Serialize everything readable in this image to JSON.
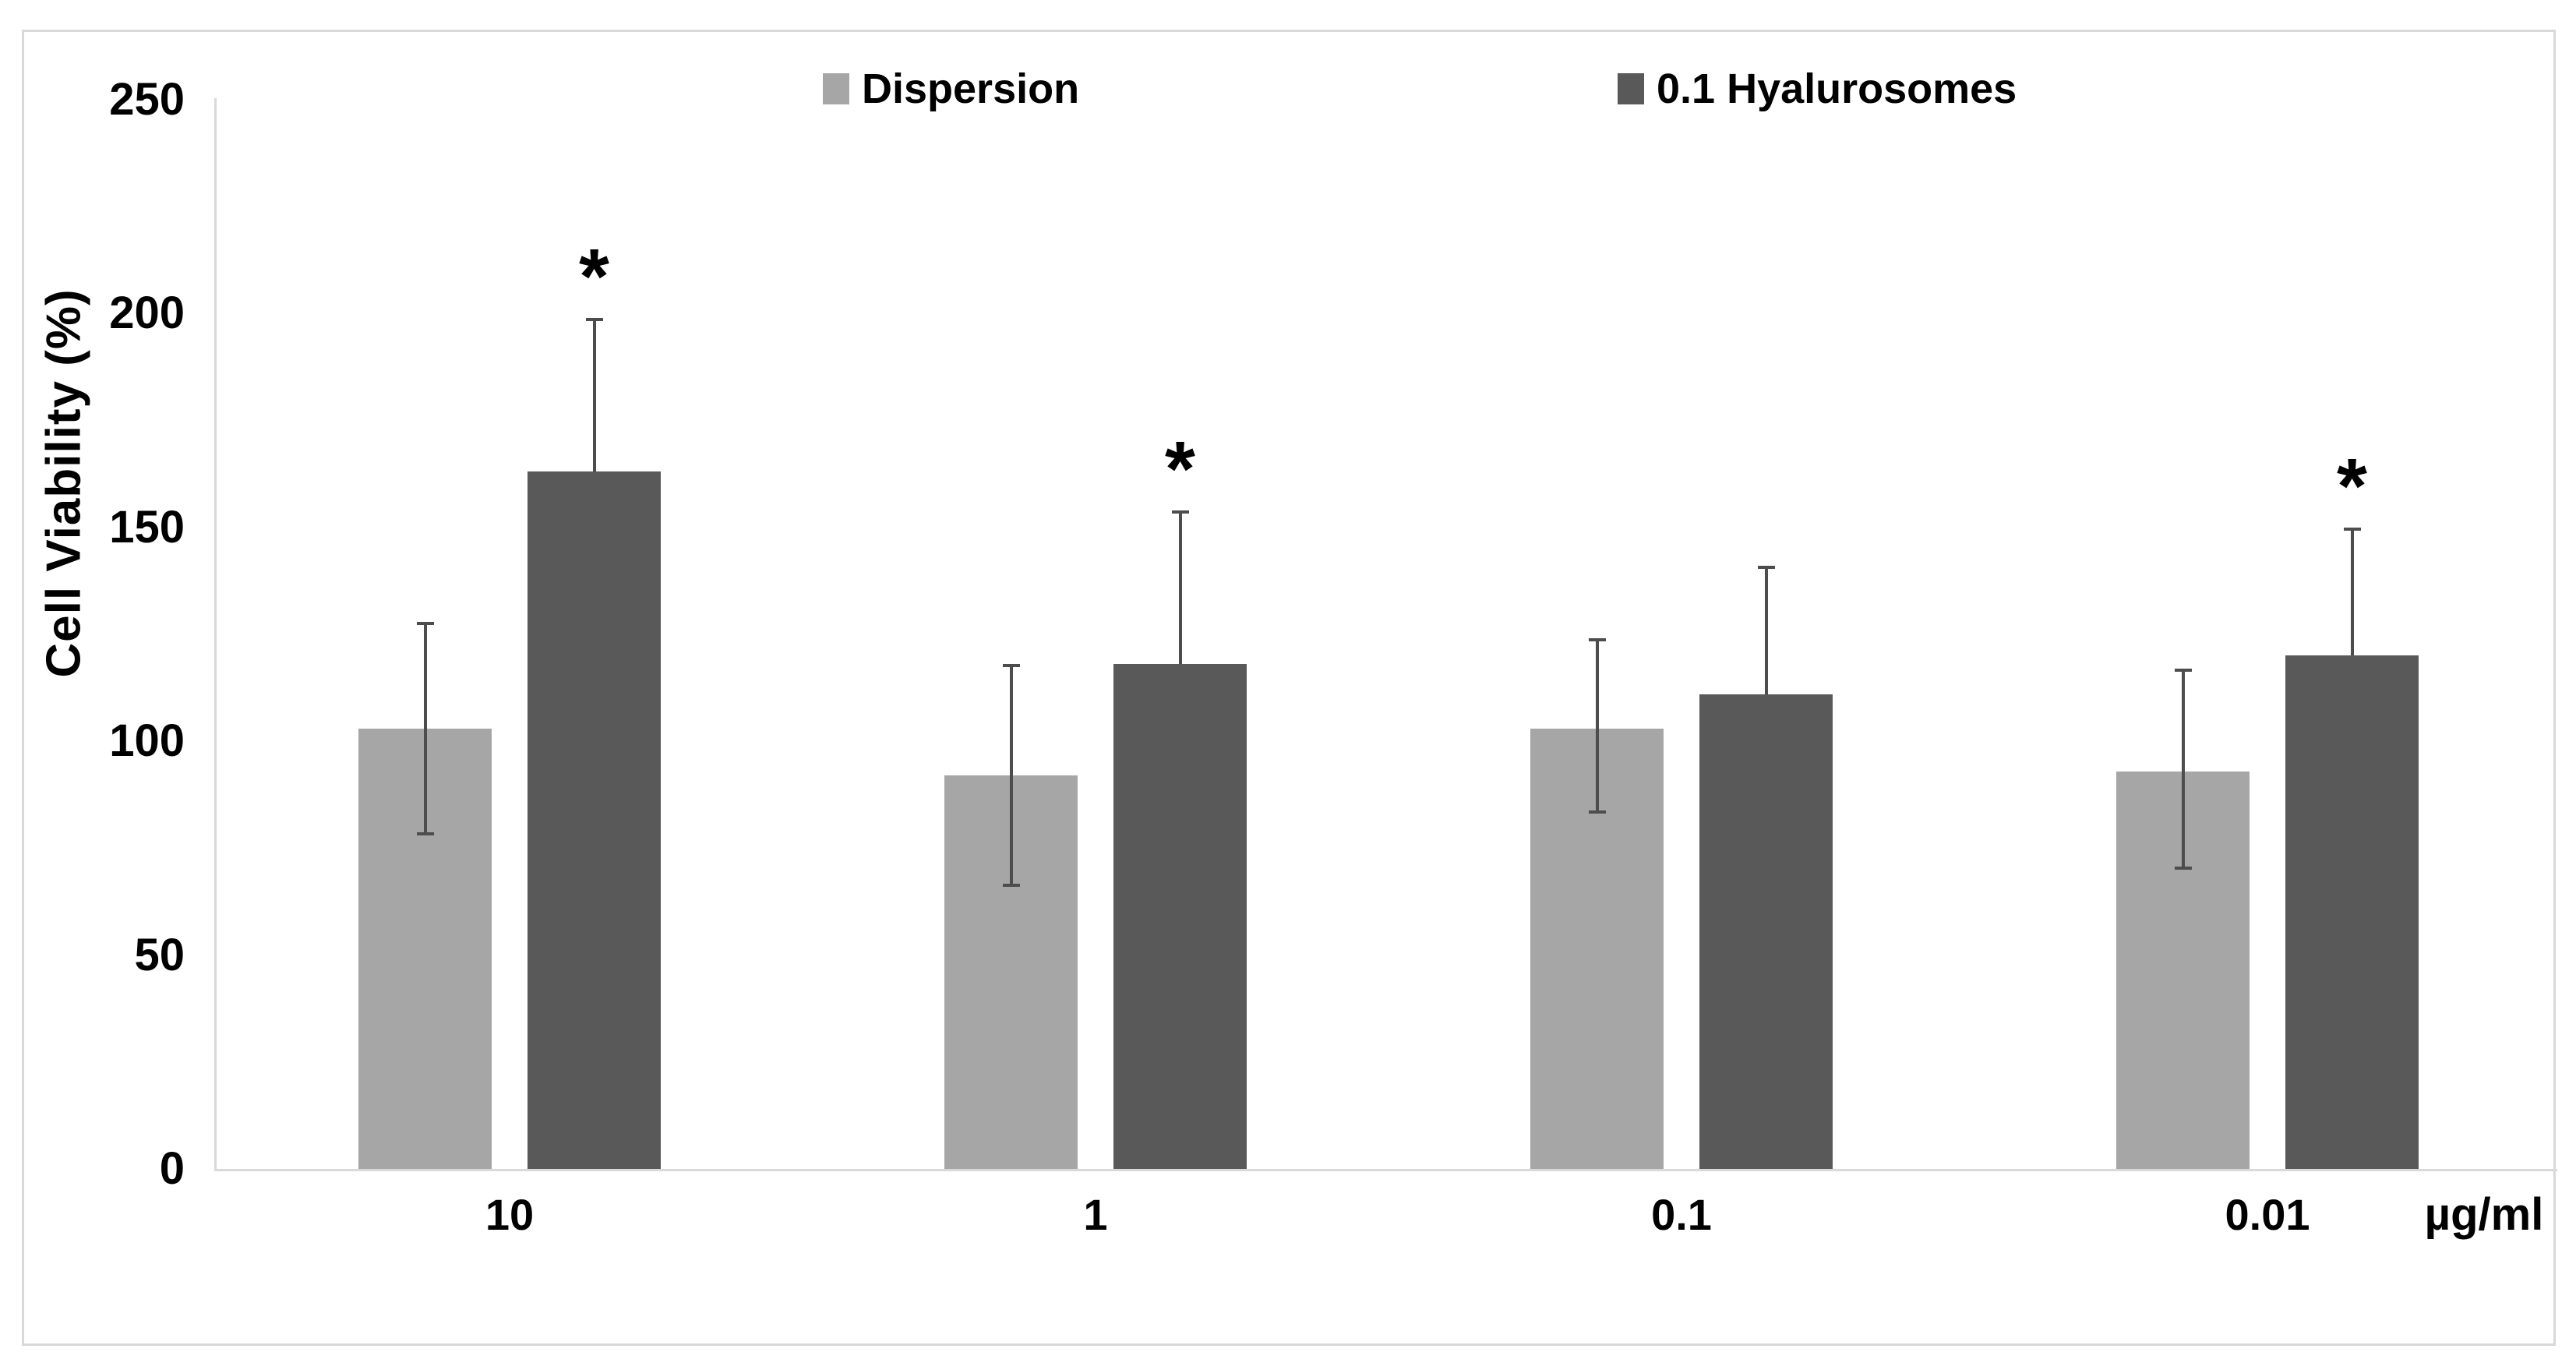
{
  "colors": {
    "axis_line": "#d9d9d9",
    "frame_border": "#d9d9d9",
    "error_bar": "#4d4d4d",
    "text": "#000000",
    "background": "#ffffff",
    "series_dispersion": "#a6a6a6",
    "series_hyalurosomes": "#595959"
  },
  "chart_data": {
    "type": "bar",
    "title": "",
    "ylabel": "Cell Viability (%)",
    "xlabel": "",
    "x_unit_label": "µg/ml",
    "categories": [
      "10",
      "1",
      "0.1",
      "0.01"
    ],
    "series": [
      {
        "name": "Dispersion",
        "color": "#a6a6a6",
        "values": [
          103,
          92,
          103,
          93
        ],
        "error_plus": [
          25,
          26,
          21,
          24
        ],
        "error_minus": [
          25,
          26,
          20,
          23
        ],
        "error_caps": "both"
      },
      {
        "name": "0.1 Hyalurosomes",
        "color": "#595959",
        "values": [
          163,
          118,
          111,
          120
        ],
        "error_plus": [
          36,
          36,
          30,
          30
        ],
        "error_minus": [
          0,
          0,
          0,
          0
        ],
        "error_caps": "top"
      }
    ],
    "significance_marker": "*",
    "significance_on_series": "0.1 Hyalurosomes",
    "significance": [
      "*",
      "*",
      "",
      "*"
    ],
    "ylim": [
      0,
      250
    ],
    "yticks": [
      0,
      50,
      100,
      150,
      200,
      250
    ],
    "grid": false,
    "legend_position": "top"
  }
}
